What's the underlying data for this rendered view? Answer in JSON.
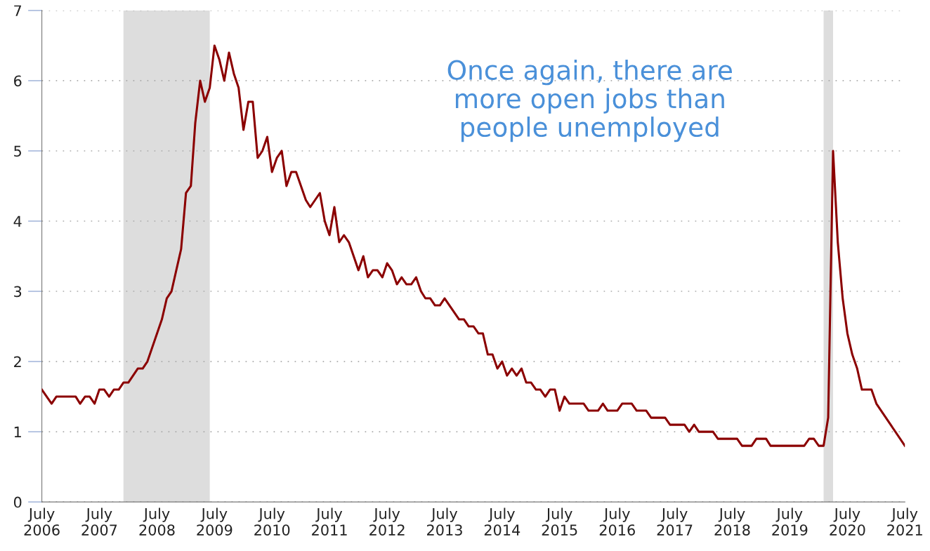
{
  "chart_data": {
    "type": "line",
    "x": [
      "2006-07",
      "2006-09",
      "2006-10",
      "2007-02",
      "2007-03",
      "2007-04",
      "2007-05",
      "2007-06",
      "2007-07",
      "2007-08",
      "2007-09",
      "2007-10",
      "2007-11",
      "2007-12",
      "2008-01",
      "2008-03",
      "2008-04",
      "2008-05",
      "2008-08",
      "2008-09",
      "2008-10",
      "2008-12",
      "2009-01",
      "2009-02",
      "2009-03",
      "2009-04",
      "2009-05",
      "2009-06",
      "2009-07",
      "2009-08",
      "2009-09",
      "2009-10",
      "2009-11",
      "2009-12",
      "2010-01",
      "2010-02",
      "2010-03",
      "2010-04",
      "2010-05",
      "2010-06",
      "2010-07",
      "2010-08",
      "2010-09",
      "2010-10",
      "2010-11",
      "2010-12",
      "2011-02",
      "2011-03",
      "2011-05",
      "2011-06",
      "2011-07",
      "2011-08",
      "2011-09",
      "2011-10",
      "2011-11",
      "2012-01",
      "2012-02",
      "2012-03",
      "2012-04",
      "2012-05",
      "2012-06",
      "2012-07",
      "2012-08",
      "2012-09",
      "2012-10",
      "2012-11",
      "2012-12",
      "2013-01",
      "2013-02",
      "2013-03",
      "2013-04",
      "2013-05",
      "2013-06",
      "2013-07",
      "2013-10",
      "2013-11",
      "2013-12",
      "2014-01",
      "2014-02",
      "2014-03",
      "2014-04",
      "2014-05",
      "2014-06",
      "2014-07",
      "2014-08",
      "2014-09",
      "2014-10",
      "2014-11",
      "2014-12",
      "2015-01",
      "2015-02",
      "2015-03",
      "2015-04",
      "2015-05",
      "2015-06",
      "2015-07",
      "2015-08",
      "2015-09",
      "2015-12",
      "2016-01",
      "2016-03",
      "2016-04",
      "2016-05",
      "2016-07",
      "2016-08",
      "2016-10",
      "2016-11",
      "2017-01",
      "2017-02",
      "2017-05",
      "2017-06",
      "2017-09",
      "2017-10",
      "2017-11",
      "2017-12",
      "2018-03",
      "2018-04",
      "2018-08",
      "2018-09",
      "2018-11",
      "2018-12",
      "2019-02",
      "2019-03",
      "2019-10",
      "2019-11",
      "2019-12",
      "2020-01",
      "2020-02",
      "2020-03",
      "2020-04",
      "2020-05",
      "2020-06",
      "2020-07",
      "2020-08",
      "2020-09",
      "2020-10",
      "2020-11",
      "2020-12",
      "2021-01",
      "2021-07"
    ],
    "series": [
      {
        "color": "#8b0000",
        "values": [
          1.6,
          1.4,
          1.5,
          1.5,
          1.4,
          1.5,
          1.5,
          1.4,
          1.6,
          1.6,
          1.5,
          1.6,
          1.6,
          1.7,
          1.7,
          1.9,
          1.9,
          2.0,
          2.6,
          2.9,
          3.0,
          3.6,
          4.4,
          4.5,
          5.4,
          6.0,
          5.7,
          5.9,
          6.5,
          6.3,
          6.0,
          6.4,
          6.1,
          5.9,
          5.3,
          5.7,
          5.7,
          4.9,
          5.0,
          5.2,
          4.7,
          4.9,
          5.0,
          4.5,
          4.7,
          4.7,
          4.3,
          4.2,
          4.4,
          4.0,
          3.8,
          4.2,
          3.7,
          3.8,
          3.7,
          3.3,
          3.5,
          3.2,
          3.3,
          3.3,
          3.2,
          3.4,
          3.3,
          3.1,
          3.2,
          3.1,
          3.1,
          3.2,
          3.0,
          2.9,
          2.9,
          2.8,
          2.8,
          2.9,
          2.6,
          2.6,
          2.5,
          2.5,
          2.4,
          2.4,
          2.1,
          2.1,
          1.9,
          2.0,
          1.8,
          1.9,
          1.8,
          1.9,
          1.7,
          1.7,
          1.6,
          1.6,
          1.5,
          1.6,
          1.6,
          1.3,
          1.5,
          1.4,
          1.4,
          1.3,
          1.3,
          1.4,
          1.3,
          1.3,
          1.4,
          1.4,
          1.3,
          1.3,
          1.2,
          1.2,
          1.1,
          1.1,
          1.0,
          1.1,
          1.0,
          1.0,
          0.9,
          0.9,
          0.8,
          0.8,
          0.9,
          0.9,
          0.8,
          0.8,
          0.9,
          0.9,
          0.8,
          0.8,
          1.2,
          5.0,
          3.7,
          2.9,
          2.4,
          2.1,
          1.9,
          1.6,
          1.6,
          1.6,
          1.4,
          0.8
        ]
      }
    ],
    "xlim": [
      "2006-07",
      "2021-07"
    ],
    "xticks": [
      {
        "value": "2006-07",
        "label": "July\n2006"
      },
      {
        "value": "2007-07",
        "label": "July\n2007"
      },
      {
        "value": "2008-07",
        "label": "July\n2008"
      },
      {
        "value": "2009-07",
        "label": "July\n2009"
      },
      {
        "value": "2010-07",
        "label": "July\n2010"
      },
      {
        "value": "2011-07",
        "label": "July\n2011"
      },
      {
        "value": "2012-07",
        "label": "July\n2012"
      },
      {
        "value": "2013-07",
        "label": "July\n2013"
      },
      {
        "value": "2014-07",
        "label": "July\n2014"
      },
      {
        "value": "2015-07",
        "label": "July\n2015"
      },
      {
        "value": "2016-07",
        "label": "July\n2016"
      },
      {
        "value": "2017-07",
        "label": "July\n2017"
      },
      {
        "value": "2018-07",
        "label": "July\n2018"
      },
      {
        "value": "2019-07",
        "label": "July\n2019"
      },
      {
        "value": "2020-07",
        "label": "July\n2020"
      },
      {
        "value": "2021-07",
        "label": "July\n2021"
      }
    ],
    "ylim": [
      0,
      7
    ],
    "yticks": [
      0,
      1,
      2,
      3,
      4,
      5,
      6,
      7
    ],
    "grid": "y",
    "line_style": "solid",
    "bands": [
      {
        "axis": "x",
        "from": "2007-12",
        "to": "2009-06",
        "color": "#dddddd"
      },
      {
        "axis": "x",
        "from": "2020-02",
        "to": "2020-04",
        "color": "#dddddd"
      }
    ],
    "annotations": [
      "Once again, there are\nmore open jobs than\npeople unemployed"
    ]
  }
}
